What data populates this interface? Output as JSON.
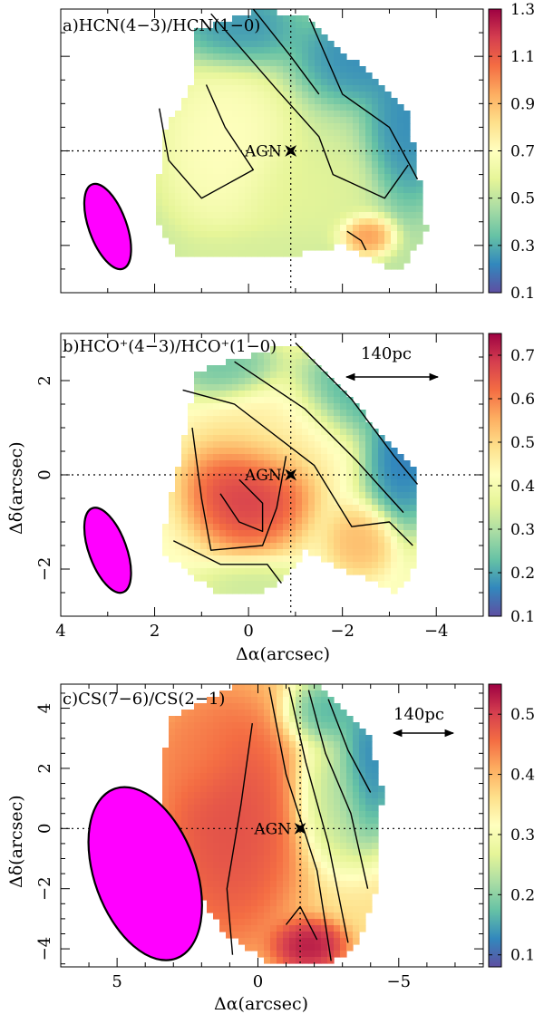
{
  "figure": {
    "colors": {
      "beam": "#ff00ff",
      "contour": "#000000",
      "ref_line": "#000000",
      "ramp": [
        "#5e4fa2",
        "#3288bd",
        "#66c2a5",
        "#abdda4",
        "#e6f598",
        "#ffffbf",
        "#fee08b",
        "#fdae61",
        "#f46d43",
        "#d53e4f",
        "#9e0142"
      ]
    }
  },
  "chart_data": [
    {
      "type": "heatmap",
      "id": "a",
      "title": "a)HCN(4−3)/HCN(1−0)",
      "xlabel": "",
      "ylabel": "",
      "xlim": [
        4.0,
        -5.0
      ],
      "ylim": [
        -3.0,
        3.0
      ],
      "x_ticks": [],
      "y_ticks": [],
      "colorbar": {
        "vmin": 0.1,
        "vmax": 1.3,
        "ticks": [
          "1.3",
          "1.1",
          "0.9",
          "0.7",
          "0.5",
          "0.3",
          "0.1"
        ]
      },
      "agn": {
        "label": "AGN",
        "x": -0.9,
        "y": 0.0
      },
      "legend_scale": "",
      "beam": {
        "x": 3.0,
        "y": -1.6,
        "major": 1.9,
        "minor": 0.8,
        "pa_deg": 20
      },
      "region": [
        [
          1.2,
          2.5
        ],
        [
          -0.2,
          3.0
        ],
        [
          -1.3,
          2.8
        ],
        [
          -3.4,
          0.8
        ],
        [
          -3.8,
          -1.7
        ],
        [
          -3.2,
          -2.6
        ],
        [
          -2.0,
          -2.0
        ],
        [
          -0.4,
          -2.3
        ],
        [
          1.5,
          -2.2
        ],
        [
          2.0,
          -1.4
        ],
        [
          1.8,
          0.4
        ],
        [
          1.1,
          1.6
        ]
      ],
      "features": [
        {
          "x": 0.5,
          "y": 0.1,
          "value": 0.72,
          "sx": 1.0,
          "sy": 1.3
        },
        {
          "x": 0.2,
          "y": 2.6,
          "value": 0.22,
          "sx": 0.9,
          "sy": 0.6
        },
        {
          "x": -2.4,
          "y": 2.0,
          "value": 0.2,
          "sx": 1.0,
          "sy": 0.7
        },
        {
          "x": -3.4,
          "y": 0.6,
          "value": 0.2,
          "sx": 0.6,
          "sy": 1.2
        },
        {
          "x": -2.5,
          "y": -1.8,
          "value": 1.05,
          "sx": 0.4,
          "sy": 0.3
        },
        {
          "x": -1.2,
          "y": -0.9,
          "value": 0.58,
          "sx": 1.0,
          "sy": 0.8
        },
        {
          "x": -0.2,
          "y": -2.2,
          "value": 0.55,
          "sx": 1.2,
          "sy": 0.4
        }
      ],
      "base": 0.5,
      "contours": [
        [
          [
            1.9,
            0.9
          ],
          [
            1.7,
            -0.2
          ],
          [
            1.0,
            -1.0
          ],
          [
            -0.1,
            -0.4
          ],
          [
            0.5,
            0.5
          ],
          [
            0.9,
            1.4
          ]
        ],
        [
          [
            0.8,
            2.9
          ],
          [
            -0.6,
            1.3
          ],
          [
            -1.5,
            0.3
          ],
          [
            -1.8,
            -0.5
          ],
          [
            -2.9,
            -1.0
          ],
          [
            -3.4,
            -0.3
          ]
        ],
        [
          [
            -1.3,
            2.8
          ],
          [
            -2.0,
            1.2
          ],
          [
            -3.0,
            0.5
          ],
          [
            -3.6,
            -0.6
          ]
        ],
        [
          [
            -0.1,
            3.0
          ],
          [
            -0.9,
            2.0
          ],
          [
            -1.5,
            1.2
          ]
        ],
        [
          [
            -2.1,
            -1.7
          ],
          [
            -2.4,
            -1.9
          ],
          [
            -2.5,
            -2.1
          ]
        ]
      ]
    },
    {
      "type": "heatmap",
      "id": "b",
      "title": "b)HCO⁺(4−3)/HCO⁺(1−0)",
      "xlabel": "Δα(arcsec)",
      "ylabel": "Δδ(arcsec)",
      "xlim": [
        4.0,
        -5.0
      ],
      "ylim": [
        -3.0,
        3.0
      ],
      "x_ticks": [
        4,
        2,
        0,
        -2,
        -4
      ],
      "y_ticks": [
        2,
        0,
        -2
      ],
      "colorbar": {
        "vmin": 0.1,
        "vmax": 0.75,
        "ticks": [
          "0.7",
          "0.6",
          "0.5",
          "0.4",
          "0.3",
          "0.2",
          "0.1"
        ]
      },
      "agn": {
        "label": "AGN",
        "x": -0.9,
        "y": 0.0
      },
      "legend_scale": "140pc",
      "beam": {
        "x": 3.0,
        "y": -1.6,
        "major": 1.9,
        "minor": 0.8,
        "pa_deg": 20
      },
      "region": [
        [
          1.1,
          2.2
        ],
        [
          -0.3,
          2.6
        ],
        [
          -1.0,
          2.8
        ],
        [
          -3.5,
          0.2
        ],
        [
          -3.6,
          -1.9
        ],
        [
          -3.2,
          -2.5
        ],
        [
          -2.0,
          -2.0
        ],
        [
          -1.2,
          -1.6
        ],
        [
          -0.7,
          -2.3
        ],
        [
          -0.2,
          -2.5
        ],
        [
          0.7,
          -2.5
        ],
        [
          1.9,
          -1.6
        ],
        [
          1.5,
          0.2
        ]
      ],
      "features": [
        {
          "x": 0.0,
          "y": -0.3,
          "value": 0.72,
          "sx": 0.9,
          "sy": 0.9
        },
        {
          "x": -0.5,
          "y": 0.9,
          "value": 0.45,
          "sx": 1.1,
          "sy": 0.8
        },
        {
          "x": -2.4,
          "y": 1.8,
          "value": 0.18,
          "sx": 1.0,
          "sy": 0.7
        },
        {
          "x": -3.3,
          "y": 0.4,
          "value": 0.12,
          "sx": 0.6,
          "sy": 1.1
        },
        {
          "x": -0.1,
          "y": -2.4,
          "value": 0.32,
          "sx": 0.9,
          "sy": 0.4
        },
        {
          "x": -2.4,
          "y": -1.4,
          "value": 0.55,
          "sx": 0.5,
          "sy": 0.5
        },
        {
          "x": 0.5,
          "y": 2.3,
          "value": 0.22,
          "sx": 0.8,
          "sy": 0.5
        }
      ],
      "base": 0.42,
      "contours": [
        [
          [
            0.2,
            -0.1
          ],
          [
            -0.3,
            -0.6
          ],
          [
            -0.3,
            -1.2
          ],
          [
            0.2,
            -1.0
          ],
          [
            0.6,
            -0.4
          ]
        ],
        [
          [
            1.2,
            1.0
          ],
          [
            1.0,
            -0.5
          ],
          [
            0.8,
            -1.6
          ],
          [
            -0.3,
            -1.5
          ],
          [
            -0.6,
            -0.7
          ],
          [
            -0.8,
            0.4
          ]
        ],
        [
          [
            1.4,
            1.8
          ],
          [
            0.3,
            1.5
          ],
          [
            -1.4,
            0.2
          ],
          [
            -2.2,
            -1.1
          ],
          [
            -3.0,
            -1.0
          ],
          [
            -3.5,
            -1.5
          ]
        ],
        [
          [
            0.3,
            2.4
          ],
          [
            -1.2,
            1.4
          ],
          [
            -2.3,
            0.3
          ],
          [
            -3.3,
            -0.8
          ]
        ],
        [
          [
            -1.0,
            2.8
          ],
          [
            -2.2,
            1.6
          ],
          [
            -3.1,
            0.4
          ],
          [
            -3.6,
            -0.2
          ]
        ],
        [
          [
            1.6,
            -1.4
          ],
          [
            0.6,
            -1.9
          ],
          [
            -0.4,
            -1.9
          ],
          [
            -0.7,
            -2.3
          ]
        ]
      ]
    },
    {
      "type": "heatmap",
      "id": "c",
      "title": "c)CS(7−6)/CS(2−1)",
      "xlabel": "Δα(arcsec)",
      "ylabel": "Δδ(arcsec)",
      "xlim": [
        7.0,
        -8.0
      ],
      "ylim": [
        -4.6,
        4.8
      ],
      "x_ticks": [
        5,
        0,
        -5
      ],
      "y_ticks": [
        4,
        2,
        0,
        -2,
        -4
      ],
      "colorbar": {
        "vmin": 0.08,
        "vmax": 0.55,
        "ticks": [
          "0.5",
          "0.4",
          "0.3",
          "0.2",
          "0.1"
        ]
      },
      "agn": {
        "label": "AGN",
        "x": -1.5,
        "y": 0.0
      },
      "legend_scale": "140pc",
      "beam": {
        "x": 4.0,
        "y": -1.5,
        "major": 6.0,
        "minor": 3.6,
        "pa_deg": 20
      },
      "region": [
        [
          3.2,
          3.6
        ],
        [
          0.6,
          4.8
        ],
        [
          -2.3,
          4.7
        ],
        [
          -3.9,
          3.2
        ],
        [
          -4.4,
          1.4
        ],
        [
          -4.3,
          -1.7
        ],
        [
          -3.6,
          -3.8
        ],
        [
          -2.5,
          -4.5
        ],
        [
          -0.5,
          -4.5
        ],
        [
          1.2,
          -3.5
        ],
        [
          2.2,
          -2.0
        ],
        [
          3.5,
          0.2
        ]
      ],
      "features": [
        {
          "x": 1.0,
          "y": 0.2,
          "value": 0.5,
          "sx": 1.8,
          "sy": 3.0
        },
        {
          "x": -1.8,
          "y": -3.9,
          "value": 0.55,
          "sx": 0.9,
          "sy": 0.6
        },
        {
          "x": -3.9,
          "y": 2.0,
          "value": 0.09,
          "sx": 0.8,
          "sy": 1.8
        },
        {
          "x": -2.5,
          "y": 3.9,
          "value": 0.14,
          "sx": 1.0,
          "sy": 0.8
        },
        {
          "x": -2.8,
          "y": 1.0,
          "value": 0.22,
          "sx": 1.0,
          "sy": 1.6
        },
        {
          "x": 2.2,
          "y": 2.5,
          "value": 0.44,
          "sx": 1.2,
          "sy": 1.2
        }
      ],
      "base": 0.36,
      "contours": [
        [
          [
            -0.4,
            4.7
          ],
          [
            -1.0,
            1.8
          ],
          [
            -2.1,
            -1.4
          ],
          [
            -2.6,
            -4.4
          ]
        ],
        [
          [
            -1.1,
            4.7
          ],
          [
            -1.7,
            2.2
          ],
          [
            -2.5,
            -0.5
          ],
          [
            -3.2,
            -3.8
          ]
        ],
        [
          [
            -1.8,
            4.6
          ],
          [
            -2.4,
            2.5
          ],
          [
            -3.3,
            0.5
          ],
          [
            -3.9,
            -2.0
          ]
        ],
        [
          [
            -2.5,
            4.3
          ],
          [
            -3.2,
            2.6
          ],
          [
            -4.0,
            1.2
          ]
        ],
        [
          [
            0.9,
            -4.2
          ],
          [
            1.1,
            -2.0
          ],
          [
            0.6,
            0.8
          ],
          [
            0.2,
            3.5
          ]
        ],
        [
          [
            -1.0,
            -3.2
          ],
          [
            -1.5,
            -2.6
          ],
          [
            -2.1,
            -3.7
          ]
        ]
      ]
    }
  ]
}
